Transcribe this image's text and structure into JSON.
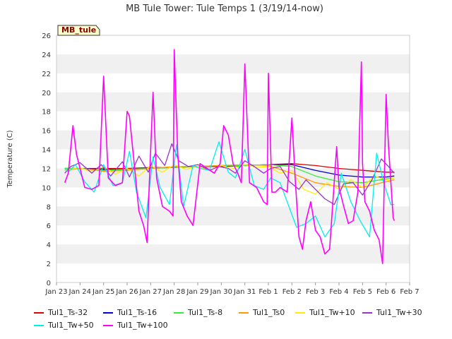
{
  "chart_data": {
    "type": "line",
    "title": "MB Tule Tower: Tule Temps 1 (3/19/14-now)",
    "badge": "MB_tule",
    "ylabel": "Temperature (C)",
    "xlabel": "",
    "ylim": [
      0,
      26
    ],
    "yticks": [
      "0",
      "2",
      "4",
      "6",
      "8",
      "10",
      "12",
      "14",
      "16",
      "18",
      "20",
      "22",
      "24",
      "26"
    ],
    "xticks": [
      "Jan 23",
      "Jan 24",
      "Jan 25",
      "Jan 26",
      "Jan 27",
      "Jan 28",
      "Jan 29",
      "Jan 30",
      "Jan 31",
      "Feb 1",
      "Feb 2",
      "Feb 3",
      "Feb 4",
      "Feb 5",
      "Feb 6",
      "Feb 7"
    ],
    "grid": "horizontal bands",
    "legend_position": "bottom",
    "colors": {
      "Tul1_Ts-32": "#dd0000",
      "Tul1_Ts-16": "#0000cc",
      "Tul1_Ts-8": "#33ee33",
      "Tul1_Ts0": "#ff9900",
      "Tul1_Tw+10": "#ffee00",
      "Tul1_Tw+30": "#9933cc",
      "Tul1_Tw+50": "#00eeee",
      "Tul1_Tw+100": "#ff00ff"
    },
    "series": [
      {
        "name": "Tul1_Ts-32",
        "x": [
          0.35,
          1,
          2,
          3,
          4,
          5,
          6,
          7,
          8,
          9,
          10,
          11,
          12,
          13,
          14,
          14.35
        ],
        "values": [
          12.0,
          12.0,
          12.0,
          12.0,
          12.1,
          12.1,
          12.2,
          12.2,
          12.3,
          12.4,
          12.5,
          12.3,
          12.0,
          11.8,
          11.6,
          11.6
        ]
      },
      {
        "name": "Tul1_Ts-16",
        "x": [
          0.35,
          1,
          2,
          3,
          4,
          5,
          6,
          7,
          8,
          9,
          10,
          11,
          12,
          13,
          14,
          14.35
        ],
        "values": [
          12.0,
          12.0,
          11.9,
          11.9,
          12.0,
          12.1,
          12.2,
          12.3,
          12.3,
          12.4,
          12.4,
          11.8,
          11.3,
          11.1,
          11.1,
          11.2
        ]
      },
      {
        "name": "Tul1_Ts-8",
        "x": [
          0.35,
          1,
          2,
          3,
          4,
          5,
          6,
          7,
          8,
          9,
          10,
          11,
          12,
          13,
          14,
          14.35
        ],
        "values": [
          12.0,
          12.0,
          11.8,
          11.9,
          12.0,
          12.1,
          12.2,
          12.3,
          12.3,
          12.4,
          12.2,
          11.2,
          10.6,
          10.5,
          10.9,
          11.0
        ]
      },
      {
        "name": "Tul1_Ts0",
        "x": [
          0.35,
          1,
          2,
          3,
          4,
          5,
          6,
          7,
          8,
          9,
          10,
          11,
          12,
          13,
          14,
          14.35
        ],
        "values": [
          11.8,
          12.0,
          11.7,
          11.8,
          12.0,
          12.2,
          12.2,
          12.3,
          12.4,
          12.3,
          11.5,
          10.5,
          10.1,
          10.0,
          10.6,
          10.8
        ]
      },
      {
        "name": "Tul1_Tw+10",
        "x": [
          0.35,
          1,
          1.5,
          2,
          2.5,
          3,
          3.5,
          4,
          4.5,
          5,
          5.5,
          6,
          6.5,
          7,
          7.5,
          8,
          8.5,
          9,
          9.5,
          10,
          10.5,
          11,
          11.5,
          12,
          12.5,
          13,
          13.5,
          14,
          14.35
        ],
        "values": [
          11.8,
          12.1,
          11.6,
          12.2,
          11.4,
          12.0,
          11.2,
          12.3,
          11.6,
          12.4,
          11.9,
          12.2,
          11.8,
          12.3,
          12.0,
          12.4,
          12.1,
          12.2,
          11.5,
          11.8,
          9.8,
          9.3,
          10.5,
          9.8,
          10.8,
          10.0,
          11.2,
          10.8,
          11.0
        ]
      },
      {
        "name": "Tul1_Tw+30",
        "x": [
          0.35,
          0.6,
          1,
          1.5,
          1.9,
          2.3,
          2.8,
          3.1,
          3.5,
          3.9,
          4.2,
          4.6,
          4.9,
          5.2,
          5.6,
          6,
          6.5,
          6.9,
          7.3,
          7.6,
          8,
          8.4,
          8.8,
          9.1,
          9.5,
          9.9,
          10.3,
          10.6,
          11,
          11.4,
          11.8,
          12.2,
          12.6,
          13,
          13.4,
          13.8,
          14.1,
          14.35
        ],
        "values": [
          11.5,
          12.2,
          12.6,
          11.5,
          12.4,
          11.2,
          12.7,
          11.1,
          13.3,
          11.6,
          13.6,
          12.3,
          14.6,
          12.8,
          12.2,
          12.4,
          11.8,
          12.2,
          12.0,
          11.5,
          12.8,
          12.2,
          11.5,
          12.0,
          12.2,
          10.6,
          9.8,
          10.8,
          9.8,
          8.8,
          8.2,
          10.4,
          10.5,
          9.2,
          10.8,
          13.0,
          12.2,
          11.5
        ]
      },
      {
        "name": "Tul1_Tw+50",
        "x": [
          0.35,
          0.5,
          0.8,
          1.2,
          1.6,
          2,
          2.4,
          2.8,
          3.1,
          3.4,
          3.8,
          4.1,
          4.4,
          4.8,
          5.1,
          5.4,
          5.8,
          6.1,
          6.5,
          6.9,
          7.3,
          7.6,
          8,
          8.4,
          8.8,
          9.1,
          9.5,
          9.9,
          10.2,
          10.6,
          11,
          11.4,
          11.8,
          12.1,
          12.5,
          12.9,
          13.3,
          13.6,
          13.9,
          14.2,
          14.35
        ],
        "values": [
          12.0,
          11.6,
          12.4,
          10.6,
          9.5,
          12.4,
          10.2,
          10.5,
          13.8,
          9.5,
          6.8,
          13.2,
          10.0,
          8.2,
          14.5,
          8.0,
          12.3,
          12.0,
          11.8,
          14.8,
          11.6,
          11.0,
          14.0,
          10.2,
          9.8,
          11.0,
          10.5,
          7.8,
          5.8,
          6.2,
          7.0,
          4.8,
          6.2,
          11.5,
          8.5,
          6.5,
          4.8,
          13.6,
          10.5,
          8.2,
          8.2
        ]
      },
      {
        "name": "Tul1_Tw+100",
        "x": [
          0.35,
          0.5,
          0.7,
          0.85,
          1,
          1.2,
          1.5,
          1.8,
          2.0,
          2.2,
          2.5,
          2.8,
          3.0,
          3.1,
          3.3,
          3.5,
          3.7,
          3.85,
          3.95,
          4.1,
          4.25,
          4.5,
          4.8,
          4.95,
          5.0,
          5.15,
          5.3,
          5.55,
          5.8,
          6.1,
          6.4,
          6.7,
          6.95,
          7.1,
          7.3,
          7.5,
          7.7,
          7.85,
          8.0,
          8.2,
          8.5,
          8.8,
          8.95,
          9.0,
          9.15,
          9.3,
          9.5,
          9.8,
          10.0,
          10.15,
          10.3,
          10.45,
          10.6,
          10.8,
          11.0,
          11.2,
          11.4,
          11.6,
          11.9,
          12.0,
          12.2,
          12.4,
          12.6,
          12.8,
          12.95,
          13.0,
          13.1,
          13.3,
          13.5,
          13.7,
          13.85,
          14.0,
          14.1,
          14.3,
          14.35
        ],
        "values": [
          10.5,
          11.5,
          16.5,
          13.5,
          12.0,
          10.0,
          9.8,
          10.2,
          21.7,
          11.0,
          10.2,
          10.5,
          18.0,
          17.5,
          12.5,
          7.5,
          6.0,
          4.2,
          11.0,
          20.0,
          11.0,
          8.0,
          7.5,
          7.0,
          24.5,
          13.5,
          8.5,
          7.0,
          6.0,
          12.5,
          12.0,
          11.5,
          12.5,
          16.5,
          15.5,
          12.5,
          11.5,
          10.5,
          23.0,
          10.5,
          10.0,
          8.5,
          8.2,
          22.0,
          9.5,
          9.5,
          10.0,
          9.5,
          17.3,
          10.5,
          4.8,
          3.5,
          6.5,
          8.5,
          5.5,
          4.8,
          3.0,
          3.5,
          14.3,
          10.0,
          8.0,
          6.2,
          6.5,
          9.5,
          23.2,
          12.5,
          8.5,
          7.5,
          5.5,
          4.5,
          2.0,
          19.8,
          14.5,
          6.8,
          6.5
        ]
      }
    ]
  },
  "legend": [
    {
      "label": "Tul1_Ts-32",
      "color": "#dd0000"
    },
    {
      "label": "Tul1_Ts-16",
      "color": "#0000cc"
    },
    {
      "label": "Tul1_Ts-8",
      "color": "#33ee33"
    },
    {
      "label": "Tul1_Ts0",
      "color": "#ff9900"
    },
    {
      "label": "Tul1_Tw+10",
      "color": "#ffee00"
    },
    {
      "label": "Tul1_Tw+30",
      "color": "#9933cc"
    },
    {
      "label": "Tul1_Tw+50",
      "color": "#00eeee"
    },
    {
      "label": "Tul1_Tw+100",
      "color": "#ff00ff"
    }
  ]
}
